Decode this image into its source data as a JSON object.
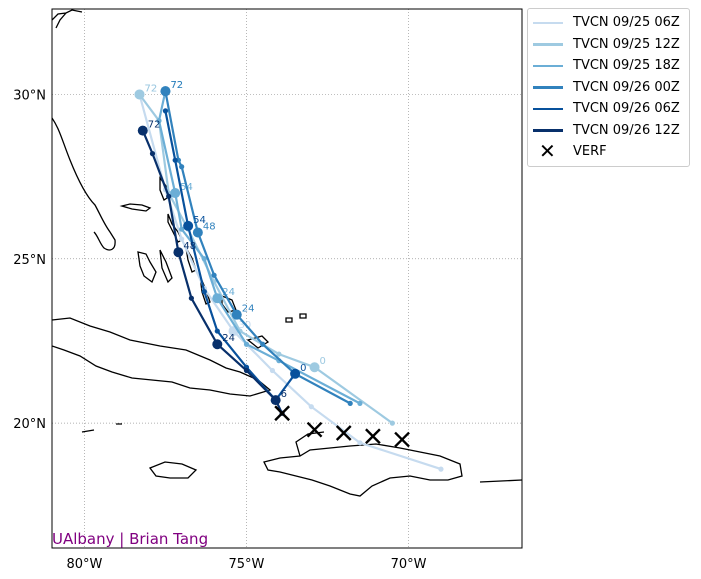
{
  "credit": "UAlbany | Brian Tang",
  "axes": {
    "lon_ticks": [
      {
        "lon": -80,
        "label": "80°W"
      },
      {
        "lon": -75,
        "label": "75°W"
      },
      {
        "lon": -70,
        "label": "70°W"
      }
    ],
    "lat_ticks": [
      {
        "lat": 20,
        "label": "20°N"
      },
      {
        "lat": 25,
        "label": "25°N"
      },
      {
        "lat": 30,
        "label": "30°N"
      }
    ],
    "lon_range": [
      -81.0,
      -66.5
    ],
    "lat_range": [
      16.2,
      32.6
    ],
    "grid": "dotted"
  },
  "legend": {
    "placement": "outside-right",
    "items": [
      {
        "label": "TVCN 09/25 06Z",
        "color": "#c6dbef"
      },
      {
        "label": "TVCN 09/25 12Z",
        "color": "#9ecae1"
      },
      {
        "label": "TVCN 09/25 18Z",
        "color": "#6baed6"
      },
      {
        "label": "TVCN 09/26 00Z",
        "color": "#3182bd"
      },
      {
        "label": "TVCN 09/26 06Z",
        "color": "#08519c"
      },
      {
        "label": "TVCN 09/26 12Z",
        "color": "#08306b"
      },
      {
        "label": "VERF",
        "marker": "x"
      }
    ]
  },
  "chart_data": {
    "type": "line",
    "title": "",
    "series": [
      {
        "name": "TVCN 09/25 06Z",
        "color": "#c6dbef",
        "points": [
          [
            -69.0,
            18.6
          ],
          [
            -71.5,
            19.4
          ],
          [
            -73.0,
            20.5
          ],
          [
            -74.2,
            21.6
          ],
          [
            -75.4,
            22.8
          ],
          [
            -76.3,
            24.1
          ],
          [
            -77.0,
            25.6
          ],
          [
            -77.5,
            27.1
          ],
          [
            -78.3,
            30.0
          ]
        ],
        "labels": [
          {
            "i": 4,
            "text": "30"
          },
          {
            "i": 8,
            "text": "72"
          }
        ]
      },
      {
        "name": "TVCN 09/25 12Z",
        "color": "#9ecae1",
        "points": [
          [
            -70.5,
            20.0
          ],
          [
            -72.9,
            21.7
          ],
          [
            -74.0,
            22.1
          ],
          [
            -75.2,
            22.8
          ],
          [
            -76.0,
            24.3
          ],
          [
            -76.8,
            25.9
          ],
          [
            -77.4,
            27.0
          ],
          [
            -77.7,
            29.2
          ],
          [
            -78.3,
            30.0
          ]
        ],
        "labels": [
          {
            "i": 1,
            "text": "0"
          },
          {
            "i": 8,
            "text": "72"
          }
        ]
      },
      {
        "name": "TVCN 09/25 18Z",
        "color": "#6baed6",
        "points": [
          [
            -71.5,
            20.6
          ],
          [
            -74.0,
            21.9
          ],
          [
            -75.0,
            22.4
          ],
          [
            -75.9,
            23.8
          ],
          [
            -76.3,
            25.0
          ],
          [
            -77.0,
            25.9
          ],
          [
            -77.2,
            27.0
          ],
          [
            -77.7,
            29.2
          ],
          [
            -77.5,
            30.1
          ]
        ],
        "labels": [
          {
            "i": 3,
            "text": "24"
          },
          {
            "i": 6,
            "text": "54"
          },
          {
            "i": 8,
            "text": "72"
          }
        ]
      },
      {
        "name": "TVCN 09/26 00Z",
        "color": "#3182bd",
        "points": [
          [
            -71.8,
            20.6
          ],
          [
            -73.5,
            21.5
          ],
          [
            -74.5,
            22.4
          ],
          [
            -75.3,
            23.3
          ],
          [
            -76.0,
            24.5
          ],
          [
            -76.5,
            25.8
          ],
          [
            -77.0,
            27.8
          ],
          [
            -77.1,
            28.0
          ],
          [
            -77.5,
            30.1
          ]
        ],
        "labels": [
          {
            "i": 3,
            "text": "24"
          },
          {
            "i": 5,
            "text": "48"
          },
          {
            "i": 8,
            "text": "72"
          }
        ]
      },
      {
        "name": "TVCN 09/26 06Z",
        "color": "#08519c",
        "points": [
          [
            -73.5,
            21.5
          ],
          [
            -74.1,
            20.7
          ],
          [
            -75.0,
            21.7
          ],
          [
            -75.9,
            22.8
          ],
          [
            -76.3,
            24.0
          ],
          [
            -76.8,
            26.0
          ],
          [
            -77.2,
            28.0
          ],
          [
            -77.5,
            29.5
          ]
        ],
        "labels": [
          {
            "i": 0,
            "text": "0"
          },
          {
            "i": 5,
            "text": "54"
          }
        ]
      },
      {
        "name": "TVCN 09/26 12Z",
        "color": "#08306b",
        "points": [
          [
            -73.9,
            20.3
          ],
          [
            -74.1,
            20.7
          ],
          [
            -75.0,
            21.6
          ],
          [
            -75.9,
            22.4
          ],
          [
            -76.7,
            23.8
          ],
          [
            -77.1,
            25.2
          ],
          [
            -77.4,
            26.9
          ],
          [
            -77.9,
            28.2
          ],
          [
            -78.2,
            28.9
          ]
        ],
        "labels": [
          {
            "i": 1,
            "text": "6"
          },
          {
            "i": 3,
            "text": "24"
          },
          {
            "i": 5,
            "text": "48"
          },
          {
            "i": 8,
            "text": "72"
          }
        ]
      }
    ],
    "verf": [
      [
        -73.9,
        20.3
      ],
      [
        -72.9,
        19.8
      ],
      [
        -72.0,
        19.7
      ],
      [
        -71.1,
        19.6
      ],
      [
        -70.2,
        19.5
      ]
    ]
  }
}
